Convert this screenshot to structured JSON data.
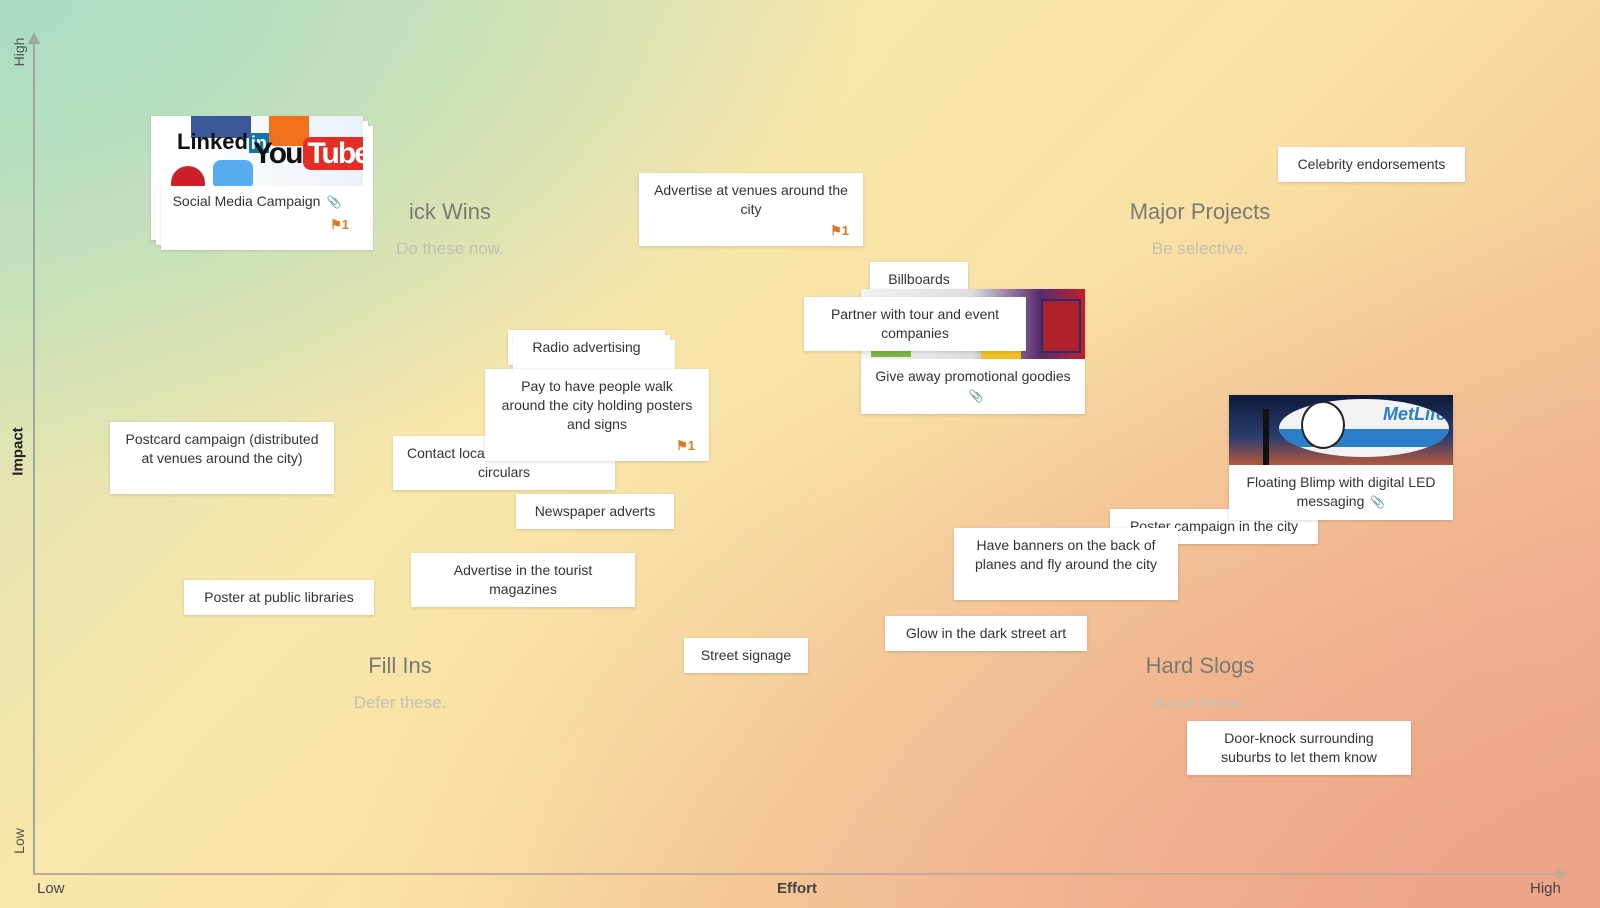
{
  "axes": {
    "y_title": "Impact",
    "y_high": "High",
    "y_low": "Low",
    "x_title": "Effort",
    "x_low": "Low",
    "x_high": "High"
  },
  "quadrants": {
    "quick_wins": {
      "title": "ick Wins",
      "subtitle": "Do these now."
    },
    "major_projects": {
      "title": "Major Projects",
      "subtitle": "Be selective."
    },
    "fill_ins": {
      "title": "Fill Ins",
      "subtitle": "Defer these."
    },
    "hard_slogs": {
      "title": "Hard Slogs",
      "subtitle": "Avoid these."
    }
  },
  "cards": {
    "social_media": {
      "label": "Social Media Campaign",
      "flag": "1",
      "image_text_1": "Linked",
      "image_text_2": "in",
      "image_text_3": "You",
      "image_text_4": "Tube"
    },
    "venues_city": {
      "label": "Advertise at venues around the city",
      "flag": "1"
    },
    "celebrity": {
      "label": "Celebrity endorsements"
    },
    "billboards": {
      "label": "Billboards"
    },
    "partner": {
      "label": "Partner with tour and event companies"
    },
    "goodies": {
      "label": "Give away promotional goodies"
    },
    "radio": {
      "label": "Radio advertising"
    },
    "pay_people": {
      "label": "Pay to have people walk around the city holding posters and signs",
      "flag": "1"
    },
    "postcard": {
      "label": "Postcard campaign (distributed at venues around the city)"
    },
    "contact_loca": {
      "label_line1": "Contact loca",
      "label_line2": "circulars"
    },
    "blimp": {
      "label": "Floating Blimp with digital LED messaging",
      "image_text": "MetLife"
    },
    "poster_city": {
      "label": "Poster campaign in the city"
    },
    "newspaper": {
      "label": "Newspaper adverts"
    },
    "banners": {
      "label": "Have banners on the back of planes and fly around the city"
    },
    "tourist_mag": {
      "label": "Advertise in the tourist magazines"
    },
    "poster_libraries": {
      "label": "Poster at public libraries"
    },
    "glow_art": {
      "label": "Glow in the dark street art"
    },
    "street_signage": {
      "label": "Street signage"
    },
    "door_knock": {
      "label": "Door-knock surrounding suburbs to let them know"
    }
  }
}
